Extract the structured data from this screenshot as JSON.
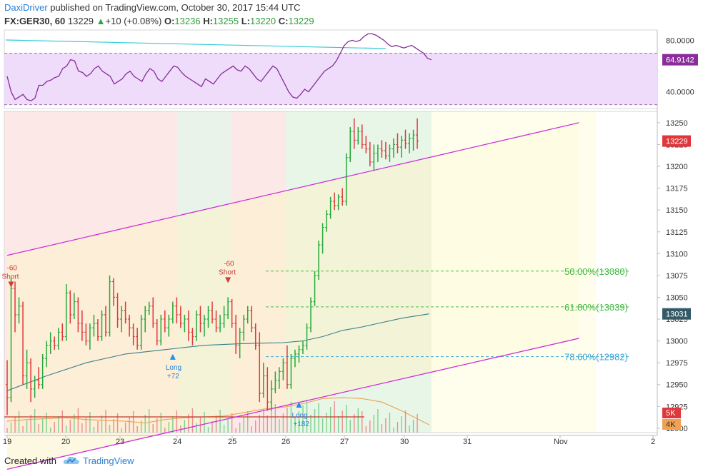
{
  "header": {
    "author": "DaxiDriver",
    "published_text": "published on TradingView.com, October 30, 2017 15:44 UTC",
    "symbol": "FX:GER30, 60",
    "last": "13229",
    "change_icon": "triangle-up-icon",
    "change": "+10 (+0.08%)",
    "open_label": "O:",
    "open": "13236",
    "high_label": "H:",
    "high": "13255",
    "low_label": "L:",
    "low": "13220",
    "close_label": "C:",
    "close": "13229"
  },
  "footer": {
    "created_with": "Created with",
    "logo_icon": "tradingview-cloud-icon",
    "brand": "TradingView"
  },
  "colors": {
    "up_candle": "#26a83c",
    "down_candle": "#e0373b",
    "rsi_line": "#8a2c9a",
    "rsi_band": "#eedcfa",
    "channel": "#cc2fd8",
    "moving_average": "#3b7f86",
    "volume_ma": "#f0a050",
    "fib_green": "#44bb44",
    "fib_blue": "#3ca6d8",
    "last_price_bg": "#e0373b",
    "rsi_value_bg": "#8a2c9a",
    "ma_value_bg": "#355a67"
  },
  "chart_data": {
    "type": "candlestick",
    "price_axis": {
      "ticks": [
        "13250",
        "13225",
        "13200",
        "13175",
        "13150",
        "13125",
        "13100",
        "13075",
        "13050",
        "13025",
        "13000",
        "12975",
        "12950",
        "12925",
        "12900"
      ],
      "range": [
        12895,
        13263
      ]
    },
    "last_price_label": "13229",
    "ma_price_label": "13031",
    "volume_labels": [
      "5K",
      "4K"
    ],
    "rsi": {
      "ticks": [
        "80.0000",
        "40.0000"
      ],
      "value_label": "64.9142",
      "band": [
        30,
        70
      ],
      "range": [
        27,
        88
      ],
      "values": [
        52,
        40,
        34,
        36,
        38,
        34,
        33,
        35,
        45,
        45,
        48,
        49,
        51,
        52,
        58,
        60,
        65,
        64,
        56,
        55,
        52,
        54,
        58,
        60,
        56,
        54,
        52,
        46,
        48,
        50,
        54,
        56,
        52,
        50,
        48,
        54,
        58,
        56,
        50,
        48,
        52,
        56,
        60,
        59,
        55,
        52,
        50,
        48,
        46,
        44,
        50,
        48,
        46,
        50,
        54,
        56,
        58,
        60,
        57,
        56,
        60,
        58,
        54,
        50,
        48,
        52,
        56,
        60,
        58,
        52,
        46,
        40,
        36,
        35,
        38,
        42,
        40,
        44,
        48,
        52,
        56,
        58,
        60,
        64,
        70,
        76,
        79,
        80,
        79,
        80,
        83,
        85,
        85,
        84,
        82,
        80,
        77,
        75,
        76,
        75,
        74,
        75,
        76,
        74,
        72,
        70,
        66,
        64.9
      ]
    },
    "x_axis_labels": [
      "19",
      "20",
      "23",
      "24",
      "25",
      "26",
      "27",
      "30",
      "31",
      "Nov",
      "2"
    ],
    "candles": [
      [
        12950,
        12978,
        12915,
        12935
      ],
      [
        12935,
        13072,
        12930,
        13060
      ],
      [
        13060,
        13068,
        13010,
        13030
      ],
      [
        13030,
        13050,
        13020,
        13040
      ],
      [
        13040,
        13045,
        12950,
        12960
      ],
      [
        12960,
        12990,
        12945,
        12975
      ],
      [
        12975,
        12980,
        12930,
        12945
      ],
      [
        12945,
        12960,
        12935,
        12955
      ],
      [
        12955,
        12970,
        12945,
        12950
      ],
      [
        12950,
        12985,
        12945,
        12980
      ],
      [
        12980,
        13000,
        12970,
        12995
      ],
      [
        12995,
        13010,
        12985,
        13000
      ],
      [
        13000,
        13005,
        12990,
        12995
      ],
      [
        12995,
        13015,
        12990,
        13010
      ],
      [
        13010,
        13020,
        13000,
        13005
      ],
      [
        13005,
        13065,
        13000,
        13055
      ],
      [
        13055,
        13058,
        13020,
        13030
      ],
      [
        13030,
        13055,
        13025,
        13045
      ],
      [
        13045,
        13050,
        13010,
        13020
      ],
      [
        13020,
        13035,
        13000,
        13010
      ],
      [
        13010,
        13020,
        12995,
        13000
      ],
      [
        13000,
        13020,
        12990,
        13015
      ],
      [
        13015,
        13030,
        13005,
        13020
      ],
      [
        13020,
        13025,
        13000,
        13005
      ],
      [
        13005,
        13035,
        13000,
        13030
      ],
      [
        13030,
        13040,
        13005,
        13010
      ],
      [
        13010,
        13075,
        13005,
        13068
      ],
      [
        13068,
        13072,
        13040,
        13050
      ],
      [
        13050,
        13055,
        13015,
        13025
      ],
      [
        13025,
        13040,
        13010,
        13035
      ],
      [
        13035,
        13045,
        13020,
        13025
      ],
      [
        13025,
        13030,
        13005,
        13015
      ],
      [
        13015,
        13020,
        12995,
        13005
      ],
      [
        13005,
        13015,
        12990,
        12995
      ],
      [
        12995,
        13030,
        12990,
        13025
      ],
      [
        13025,
        13040,
        13010,
        13035
      ],
      [
        13035,
        13045,
        13030,
        13040
      ],
      [
        13040,
        13050,
        13015,
        13020
      ],
      [
        13020,
        13025,
        12995,
        13000
      ],
      [
        13000,
        13030,
        12995,
        13025
      ],
      [
        13025,
        13035,
        13010,
        13015
      ],
      [
        13015,
        13030,
        13005,
        13025
      ],
      [
        13025,
        13045,
        13020,
        13040
      ],
      [
        13040,
        13050,
        13020,
        13030
      ],
      [
        13030,
        13040,
        13015,
        13020
      ],
      [
        13020,
        13030,
        13010,
        13025
      ],
      [
        13025,
        13035,
        13000,
        13010
      ],
      [
        13010,
        13015,
        12995,
        13005
      ],
      [
        13005,
        13035,
        13000,
        13030
      ],
      [
        13030,
        13040,
        13010,
        13020
      ],
      [
        13020,
        13030,
        13005,
        13025
      ],
      [
        13025,
        13040,
        13015,
        13035
      ],
      [
        13035,
        13045,
        13020,
        13025
      ],
      [
        13025,
        13035,
        13010,
        13015
      ],
      [
        13015,
        13030,
        13010,
        13020
      ],
      [
        13020,
        13040,
        13015,
        13030
      ],
      [
        13030,
        13050,
        13025,
        13045
      ],
      [
        13045,
        13048,
        13015,
        13020
      ],
      [
        13020,
        13030,
        12985,
        12995
      ],
      [
        12995,
        13015,
        12980,
        13010
      ],
      [
        13010,
        13030,
        13000,
        13025
      ],
      [
        13025,
        13040,
        13020,
        13035
      ],
      [
        13035,
        13040,
        13010,
        13015
      ],
      [
        13015,
        13020,
        12990,
        12995
      ],
      [
        12995,
        13010,
        12930,
        12940
      ],
      [
        12940,
        12975,
        12935,
        12960
      ],
      [
        12960,
        12970,
        12920,
        12930
      ],
      [
        12930,
        12955,
        12920,
        12945
      ],
      [
        12945,
        12965,
        12940,
        12955
      ],
      [
        12955,
        12970,
        12945,
        12965
      ],
      [
        12965,
        12980,
        12955,
        12975
      ],
      [
        12975,
        12995,
        12945,
        12950
      ],
      [
        12950,
        12985,
        12945,
        12980
      ],
      [
        12980,
        12990,
        12970,
        12985
      ],
      [
        12985,
        12995,
        12975,
        12990
      ],
      [
        12990,
        13000,
        12985,
        12995
      ],
      [
        12995,
        13020,
        12990,
        13015
      ],
      [
        13015,
        13050,
        13010,
        13045
      ],
      [
        13045,
        13080,
        13040,
        13075
      ],
      [
        13075,
        13115,
        13070,
        13110
      ],
      [
        13110,
        13135,
        13100,
        13130
      ],
      [
        13130,
        13150,
        13125,
        13145
      ],
      [
        13145,
        13165,
        13140,
        13160
      ],
      [
        13160,
        13170,
        13150,
        13155
      ],
      [
        13155,
        13168,
        13150,
        13165
      ],
      [
        13165,
        13175,
        13155,
        13160
      ],
      [
        13160,
        13215,
        13155,
        13210
      ],
      [
        13210,
        13245,
        13205,
        13240
      ],
      [
        13240,
        13255,
        13220,
        13230
      ],
      [
        13230,
        13245,
        13225,
        13240
      ],
      [
        13240,
        13248,
        13220,
        13225
      ],
      [
        13225,
        13235,
        13215,
        13220
      ],
      [
        13220,
        13228,
        13200,
        13205
      ],
      [
        13205,
        13225,
        13195,
        13215
      ],
      [
        13215,
        13225,
        13205,
        13220
      ],
      [
        13220,
        13230,
        13210,
        13218
      ],
      [
        13218,
        13228,
        13208,
        13212
      ],
      [
        13212,
        13225,
        13205,
        13220
      ],
      [
        13220,
        13232,
        13210,
        13225
      ],
      [
        13225,
        13238,
        13215,
        13222
      ],
      [
        13222,
        13235,
        13210,
        13230
      ],
      [
        13230,
        13242,
        13220,
        13226
      ],
      [
        13226,
        13238,
        13215,
        13232
      ],
      [
        13232,
        13242,
        13218,
        13236
      ],
      [
        13236,
        13255,
        13220,
        13229
      ]
    ],
    "moving_average": [
      [
        0,
        12943
      ],
      [
        10,
        12960
      ],
      [
        20,
        12975
      ],
      [
        30,
        12985
      ],
      [
        40,
        12990
      ],
      [
        50,
        12995
      ],
      [
        60,
        12997
      ],
      [
        70,
        12998
      ],
      [
        75,
        13000
      ],
      [
        80,
        13005
      ],
      [
        85,
        13012
      ],
      [
        90,
        13016
      ],
      [
        95,
        13021
      ],
      [
        100,
        13026
      ],
      [
        107,
        13031
      ]
    ],
    "volume_ma": [
      [
        0,
        12908
      ],
      [
        5,
        12910
      ],
      [
        10,
        12911
      ],
      [
        15,
        12912
      ],
      [
        20,
        12910
      ],
      [
        25,
        12909
      ],
      [
        30,
        12908
      ],
      [
        35,
        12906
      ],
      [
        40,
        12910
      ],
      [
        45,
        12912
      ],
      [
        50,
        12913
      ],
      [
        55,
        12914
      ],
      [
        60,
        12918
      ],
      [
        65,
        12922
      ],
      [
        70,
        12924
      ],
      [
        75,
        12928
      ],
      [
        80,
        12934
      ],
      [
        85,
        12935
      ],
      [
        90,
        12934
      ],
      [
        95,
        12930
      ],
      [
        100,
        12920
      ],
      [
        107,
        12904
      ]
    ],
    "channel": {
      "upper": [
        [
          0,
          13098
        ],
        [
          145,
          13250
        ]
      ],
      "lower": [
        [
          0,
          12853
        ],
        [
          145,
          13003
        ]
      ]
    },
    "fibonacci": [
      {
        "label": "50.00%(13080)",
        "value": 13080,
        "color": "#44bb44"
      },
      {
        "label": "61.80%(13039)",
        "value": 13039,
        "color": "#44bb44"
      },
      {
        "label": "78.60%(12982)",
        "value": 12982,
        "color": "#3ca6d8"
      }
    ],
    "signals": [
      {
        "type": "Short",
        "label": "Short",
        "pnl": "-60",
        "bar": 1,
        "price": 13050
      },
      {
        "type": "Long",
        "label": "Long",
        "pnl": "+72",
        "bar": 42,
        "price": 12990
      },
      {
        "type": "Short",
        "label": "Short",
        "pnl": "-60",
        "bar": 56,
        "price": 13055
      },
      {
        "type": "Long",
        "label": "Long",
        "pnl": "+182",
        "bar": 74,
        "price": 12935
      }
    ]
  }
}
